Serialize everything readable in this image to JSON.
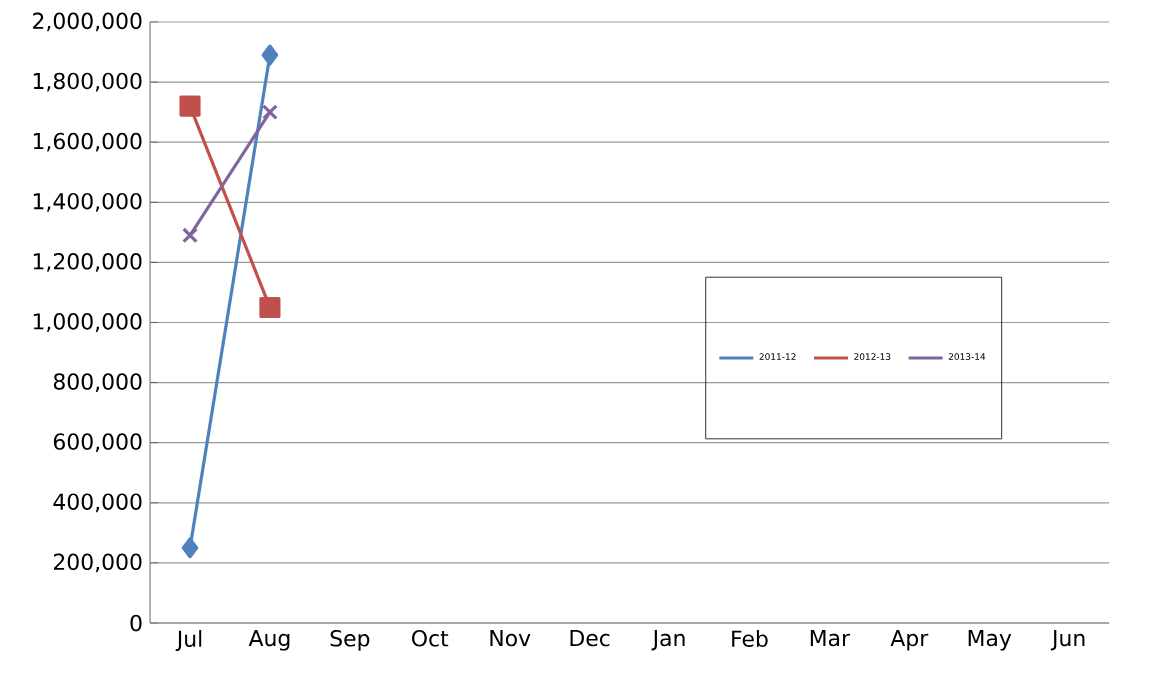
{
  "chart_data": {
    "type": "line",
    "categories": [
      "Jul",
      "Aug",
      "Sep",
      "Oct",
      "Nov",
      "Dec",
      "Jan",
      "Feb",
      "Mar",
      "Apr",
      "May",
      "Jun"
    ],
    "series": [
      {
        "name": "2011-12",
        "color": "#4f81bd",
        "marker": "diamond",
        "values": [
          250000,
          1890000,
          null,
          null,
          null,
          null,
          null,
          null,
          null,
          null,
          null,
          null
        ]
      },
      {
        "name": "2012-13",
        "color": "#c0504d",
        "marker": "square",
        "values": [
          1720000,
          1050000,
          null,
          null,
          null,
          null,
          null,
          null,
          null,
          null,
          null,
          null
        ]
      },
      {
        "name": "2013-14",
        "color": "#8064a2",
        "marker": "cross",
        "values": [
          1290000,
          1700000,
          null,
          null,
          null,
          null,
          null,
          null,
          null,
          null,
          null,
          null
        ]
      }
    ],
    "ylim": [
      0,
      2000000
    ],
    "yticks": [
      0,
      {
        "value": 200000,
        "label": "200,000"
      },
      {
        "value": 400000,
        "label": "400,000"
      },
      {
        "value": 600000,
        "label": "600,000"
      },
      {
        "value": 800000,
        "label": "800,000"
      },
      {
        "value": 1000000,
        "label": "1,000,000"
      },
      {
        "value": 1200000,
        "label": "1,200,000"
      },
      {
        "value": 1400000,
        "label": "1,400,000"
      },
      {
        "value": 1600000,
        "label": "1,600,000"
      },
      {
        "value": 1800000,
        "label": "1,800,000"
      },
      {
        "value": 2000000,
        "label": "2,000,000"
      }
    ],
    "grid": "y",
    "legend": "right",
    "line_style": "solid"
  }
}
